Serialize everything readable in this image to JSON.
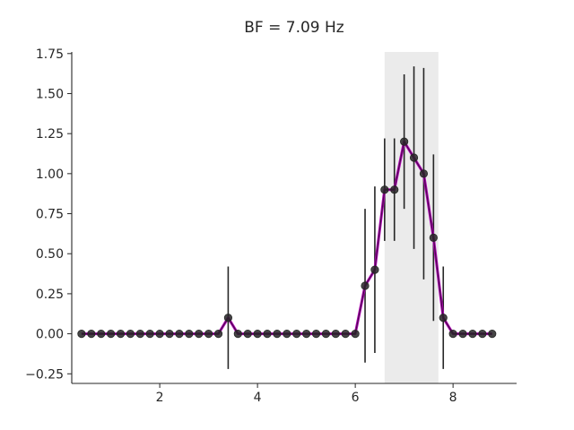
{
  "chart_data": {
    "type": "line",
    "title": "BF = 7.09 Hz",
    "xlabel": "",
    "ylabel": "",
    "xlim": [
      0.2,
      9.3
    ],
    "ylim": [
      -0.31,
      1.76
    ],
    "x_ticks": [
      2,
      4,
      6,
      8
    ],
    "x_tick_labels": [
      "2",
      "4",
      "6",
      "8"
    ],
    "y_ticks": [
      -0.25,
      0.0,
      0.25,
      0.5,
      0.75,
      1.0,
      1.25,
      1.5,
      1.75
    ],
    "y_tick_labels": [
      "−0.25",
      "0.00",
      "0.25",
      "0.50",
      "0.75",
      "1.00",
      "1.25",
      "1.50",
      "1.75"
    ],
    "grid": false,
    "shaded_band": {
      "x_start": 6.6,
      "x_end": 7.7
    },
    "colors": {
      "points": "#262626",
      "error_bars": "#262626",
      "fit_line": "#b000b5",
      "band": "#ebebeb",
      "axes": "#262626"
    },
    "series": [
      {
        "x": [
          0.4,
          0.6,
          0.8,
          1.0,
          1.2,
          1.4,
          1.6,
          1.8,
          2.0,
          2.2,
          2.4,
          2.6,
          2.8,
          3.0,
          3.2,
          3.4,
          3.6,
          3.8,
          4.0,
          4.2,
          4.4,
          4.6,
          4.8,
          5.0,
          5.2,
          5.4,
          5.6,
          5.8,
          6.0,
          6.2,
          6.4,
          6.6,
          6.8,
          7.0,
          7.2,
          7.4,
          7.6,
          7.8,
          8.0,
          8.2,
          8.4,
          8.6,
          8.8
        ],
        "y": [
          0,
          0,
          0,
          0,
          0,
          0,
          0,
          0,
          0,
          0,
          0,
          0,
          0,
          0,
          0,
          0.1,
          0,
          0,
          0,
          0,
          0,
          0,
          0,
          0,
          0,
          0,
          0,
          0,
          0,
          0.3,
          0.4,
          0.9,
          0.9,
          1.2,
          1.1,
          1.0,
          0.6,
          0.1,
          0,
          0,
          0,
          0,
          0
        ],
        "err": [
          0,
          0,
          0,
          0,
          0,
          0,
          0,
          0,
          0,
          0,
          0,
          0,
          0,
          0,
          0,
          0.32,
          0,
          0,
          0,
          0,
          0,
          0,
          0,
          0,
          0,
          0,
          0,
          0,
          0,
          0.48,
          0.52,
          0.32,
          0.32,
          0.42,
          0.57,
          0.66,
          0.52,
          0.32,
          0,
          0,
          0,
          0,
          0
        ]
      }
    ]
  }
}
